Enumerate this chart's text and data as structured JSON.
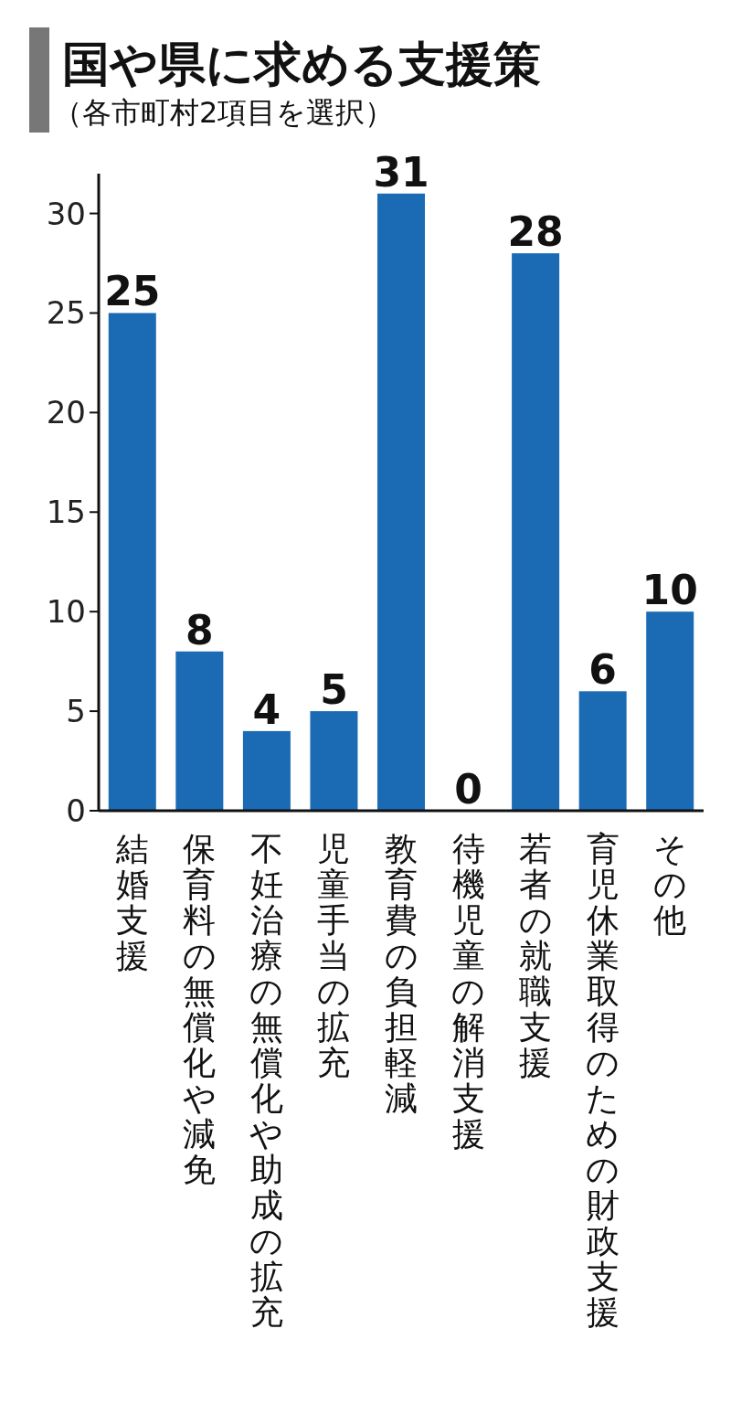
{
  "chart_data": {
    "type": "bar",
    "title": "国や県に求める支援策",
    "subtitle": "（各市町村2項目を選択）",
    "categories": [
      "結婚支援",
      "保育料の無償化や減免",
      "不妊治療の無償化や助成の拡充",
      "児童手当の拡充",
      "教育費の負担軽減",
      "待機児童の解消支援",
      "若者の就職支援",
      "育児休業取得のための財政支援",
      "その他"
    ],
    "values": [
      25,
      8,
      4,
      5,
      31,
      0,
      28,
      6,
      10
    ],
    "color": "#1a6ab4",
    "ylim": [
      0,
      32
    ],
    "yticks": [
      0,
      5,
      10,
      15,
      20,
      25,
      30
    ],
    "data_labels": true,
    "grid": false
  }
}
